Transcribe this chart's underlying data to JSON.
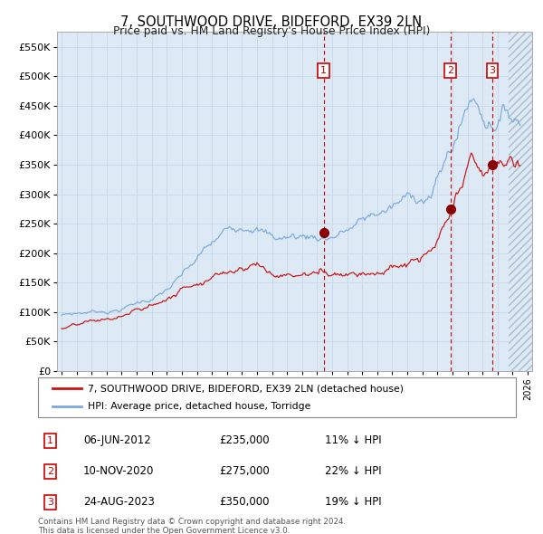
{
  "title": "7, SOUTHWOOD DRIVE, BIDEFORD, EX39 2LN",
  "subtitle": "Price paid vs. HM Land Registry's House Price Index (HPI)",
  "legend_label_red": "7, SOUTHWOOD DRIVE, BIDEFORD, EX39 2LN (detached house)",
  "legend_label_blue": "HPI: Average price, detached house, Torridge",
  "footer1": "Contains HM Land Registry data © Crown copyright and database right 2024.",
  "footer2": "This data is licensed under the Open Government Licence v3.0.",
  "transactions": [
    {
      "label": "1",
      "date": "06-JUN-2012",
      "price": 235000,
      "hpi_diff": "11% ↓ HPI"
    },
    {
      "label": "2",
      "date": "10-NOV-2020",
      "price": 275000,
      "hpi_diff": "22% ↓ HPI"
    },
    {
      "label": "3",
      "date": "24-AUG-2023",
      "price": 350000,
      "hpi_diff": "19% ↓ HPI"
    }
  ],
  "sale_dates_decimal": [
    2012.44,
    2020.86,
    2023.65
  ],
  "sale_prices": [
    235000,
    275000,
    350000
  ],
  "y_ticks": [
    0,
    50000,
    100000,
    150000,
    200000,
    250000,
    300000,
    350000,
    400000,
    450000,
    500000,
    550000
  ],
  "y_tick_labels": [
    "£0",
    "£50K",
    "£100K",
    "£150K",
    "£200K",
    "£250K",
    "£300K",
    "£350K",
    "£400K",
    "£450K",
    "£500K",
    "£550K"
  ],
  "ylim": [
    0,
    575000
  ],
  "xlim_start": 1994.7,
  "xlim_end": 2026.3,
  "hpi_color": "#7aaadd",
  "price_color": "#cc1111",
  "dot_color": "#880000",
  "grid_color": "#c8d8ea",
  "bg_color": "#ddeaf5",
  "hatch_color": "#aabbcc",
  "vline_color": "#cc0000",
  "box_color": "#cc0000",
  "hatch_start": 2024.75
}
